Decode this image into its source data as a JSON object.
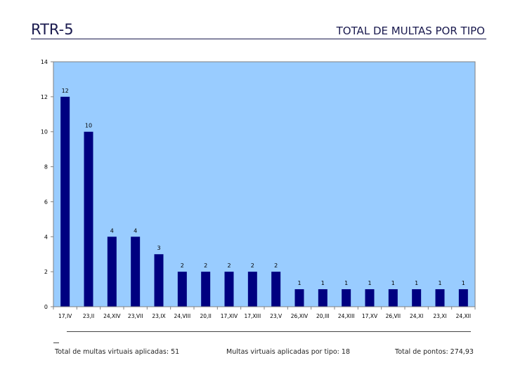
{
  "header": {
    "title": "RTR-5",
    "subtitle": "TOTAL DE MULTAS POR TIPO"
  },
  "chart_data": {
    "type": "bar",
    "title": "",
    "xlabel": "",
    "ylabel": "",
    "ylim": [
      0,
      14
    ],
    "yticks": [
      0,
      2,
      4,
      6,
      8,
      10,
      12,
      14
    ],
    "grid": false,
    "categories": [
      "17,IV",
      "23,II",
      "24,XIV",
      "23,VII",
      "23,IX",
      "24,VIII",
      "20,II",
      "17,XIV",
      "17,XIII",
      "23,V",
      "26,XIV",
      "20,III",
      "24,XIII",
      "17,XV",
      "26,VII",
      "24,XI",
      "23,XI",
      "24,XII"
    ],
    "values": [
      12,
      10,
      4,
      4,
      3,
      2,
      2,
      2,
      2,
      2,
      1,
      1,
      1,
      1,
      1,
      1,
      1,
      1
    ],
    "colors": {
      "plot_bg": "#99ccff",
      "bar": "#000080",
      "axis": "#808080"
    }
  },
  "footer": {
    "total_multas": "Total de multas virtuais aplicadas: 51",
    "por_tipo": "Multas virtuais aplicadas por tipo: 18",
    "total_pontos": "Total de pontos: 274,93"
  }
}
